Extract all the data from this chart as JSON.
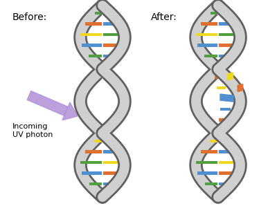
{
  "title_before": "Before:",
  "title_after": "After:",
  "label_text": "Incoming\nUV photon",
  "bg_color": "#ffffff",
  "strand_fill": "#d0d0d0",
  "strand_edge": "#606060",
  "base_colors": [
    "#4a90d9",
    "#e8702a",
    "#f5d800",
    "#5cb85c"
  ],
  "damaged_colors_left": [
    "#f5d800",
    "#e8702a"
  ],
  "damaged_colors_right": [
    "#4a90d9",
    "#5cb85c"
  ],
  "arrow_color_light": "#d8c0f0",
  "arrow_color_dark": "#b090d8",
  "label_color": "#000000",
  "title_fontsize": 10,
  "label_fontsize": 8,
  "base_pair_rows": [
    [
      "green",
      "yellow"
    ],
    [
      "orange",
      "blue"
    ],
    [
      "yellow",
      "green"
    ],
    [
      "blue",
      "orange"
    ],
    [
      "green",
      "yellow"
    ],
    [
      "orange",
      "blue"
    ],
    [
      "yellow",
      "green"
    ],
    [
      "blue",
      "orange"
    ],
    [
      "green",
      "yellow"
    ],
    [
      "orange",
      "blue"
    ]
  ],
  "color_map": {
    "blue": "#5090d0",
    "orange": "#e07030",
    "yellow": "#f0d820",
    "green": "#50a040"
  }
}
